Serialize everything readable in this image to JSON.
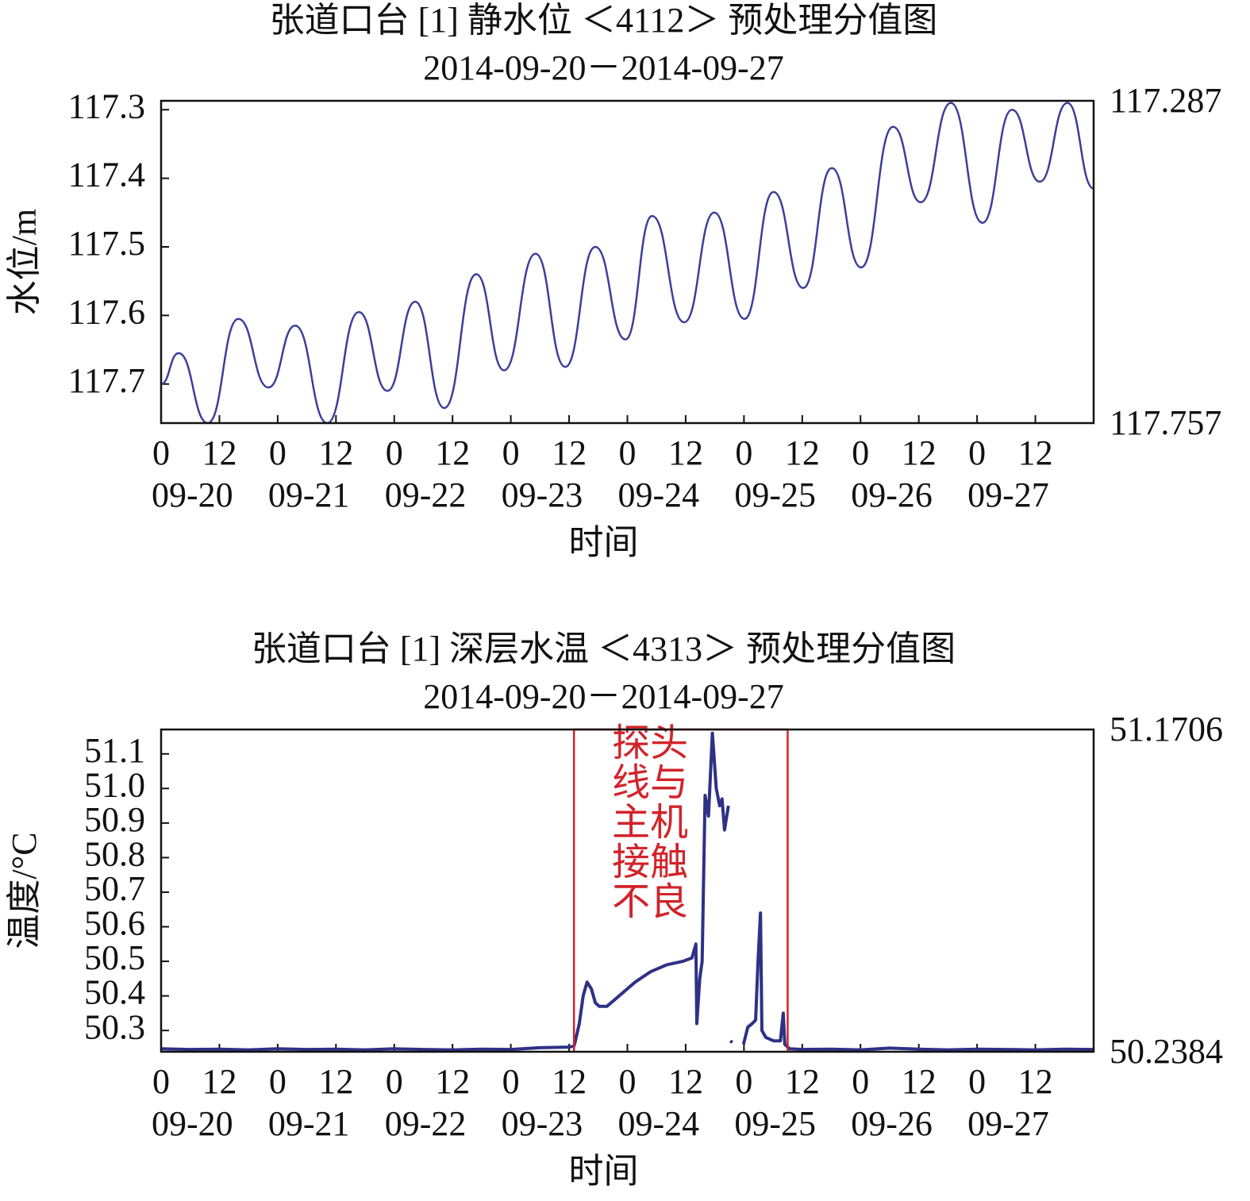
{
  "chart_data": [
    {
      "type": "line",
      "title": "张道口台 [1] 静水位 ＜4112＞ 预处理分值图",
      "subtitle": "2014-09-20－2014-09-27",
      "x_label": "时间",
      "y_label": "水位/m",
      "color": "#3b3f98",
      "xlim": [
        0,
        192
      ],
      "xticks": [
        0,
        12,
        {
          "value": 24,
          "label": "0"
        },
        {
          "value": 36,
          "label": "12"
        },
        {
          "value": 48,
          "label": "0"
        },
        {
          "value": 60,
          "label": "12"
        },
        {
          "value": 72,
          "label": "0"
        },
        {
          "value": 84,
          "label": "12"
        },
        {
          "value": 96,
          "label": "0"
        },
        {
          "value": 108,
          "label": "12"
        },
        {
          "value": 120,
          "label": "0"
        },
        {
          "value": 132,
          "label": "12"
        },
        {
          "value": 144,
          "label": "0"
        },
        {
          "value": 156,
          "label": "12"
        },
        {
          "value": 168,
          "label": "0"
        },
        {
          "value": 180,
          "label": "12"
        }
      ],
      "x_date_ticks": [
        {
          "value": 0,
          "label": "09-20"
        },
        {
          "value": 24,
          "label": "09-21"
        },
        {
          "value": 48,
          "label": "09-22"
        },
        {
          "value": 72,
          "label": "09-23"
        },
        {
          "value": 96,
          "label": "09-24"
        },
        {
          "value": 120,
          "label": "09-25"
        },
        {
          "value": 144,
          "label": "09-26"
        },
        {
          "value": 168,
          "label": "09-27"
        }
      ],
      "ylim": [
        117.757,
        117.287
      ],
      "yticks": [
        117.3,
        117.4,
        117.5,
        117.6,
        117.7
      ],
      "y2lim": [
        117.757,
        117.287
      ],
      "y2ticks": [
        117.287,
        117.757
      ],
      "smooth": true,
      "x": [
        0,
        3.6,
        9.6,
        15.9,
        22.1,
        27.6,
        34.2,
        40.7,
        46.6,
        52.3,
        58.3,
        64.9,
        70.6,
        77.1,
        83.2,
        89.4,
        95.6,
        101.1,
        107.7,
        113.9,
        120.1,
        126.1,
        132.2,
        138.1,
        144.1,
        150.7,
        156.4,
        162.6,
        169.1,
        175.2,
        180.9,
        186.6,
        192
      ],
      "values": [
        117.7,
        117.655,
        117.757,
        117.605,
        117.705,
        117.615,
        117.757,
        117.595,
        117.71,
        117.58,
        117.735,
        117.54,
        117.68,
        117.51,
        117.675,
        117.5,
        117.635,
        117.455,
        117.61,
        117.45,
        117.605,
        117.42,
        117.56,
        117.385,
        117.53,
        117.325,
        117.435,
        117.29,
        117.465,
        117.3,
        117.405,
        117.29,
        117.415
      ]
    },
    {
      "type": "line",
      "title": "张道口台 [1] 深层水温 ＜4313＞ 预处理分值图",
      "subtitle": "2014-09-20－2014-09-27",
      "x_label": "时间",
      "y_label": "温度/°C",
      "color": "#2e3185",
      "xlim": [
        0,
        192
      ],
      "xticks": [
        0,
        12,
        {
          "value": 24,
          "label": "0"
        },
        {
          "value": 36,
          "label": "12"
        },
        {
          "value": 48,
          "label": "0"
        },
        {
          "value": 60,
          "label": "12"
        },
        {
          "value": 72,
          "label": "0"
        },
        {
          "value": 84,
          "label": "12"
        },
        {
          "value": 96,
          "label": "0"
        },
        {
          "value": 108,
          "label": "12"
        },
        {
          "value": 120,
          "label": "0"
        },
        {
          "value": 132,
          "label": "12"
        },
        {
          "value": 144,
          "label": "0"
        },
        {
          "value": 156,
          "label": "12"
        },
        {
          "value": 168,
          "label": "0"
        },
        {
          "value": 180,
          "label": "12"
        }
      ],
      "x_date_ticks": [
        {
          "value": 0,
          "label": "09-20"
        },
        {
          "value": 24,
          "label": "09-21"
        },
        {
          "value": 48,
          "label": "09-22"
        },
        {
          "value": 72,
          "label": "09-23"
        },
        {
          "value": 96,
          "label": "09-24"
        },
        {
          "value": 120,
          "label": "09-25"
        },
        {
          "value": 144,
          "label": "09-26"
        },
        {
          "value": 168,
          "label": "09-27"
        }
      ],
      "ylim": [
        50.2384,
        51.1706
      ],
      "yticks": [
        50.3,
        50.4,
        50.5,
        50.6,
        50.7,
        50.8,
        50.9,
        {
          "value": 51,
          "label": "51.0"
        },
        51.1
      ],
      "y2lim": [
        50.2384,
        51.1706
      ],
      "y2ticks": [
        51.1706,
        50.2384
      ],
      "smooth": false,
      "highlight": {
        "x_range": [
          85,
          129
        ],
        "color": "#d2232a",
        "text_lines": [
          "探头",
          "线与",
          "主机",
          "接触",
          "不良"
        ]
      },
      "x": [
        0,
        6,
        12,
        18,
        24,
        30,
        36,
        42,
        48,
        54,
        60,
        66,
        72,
        78,
        84,
        85,
        85.3,
        86.1,
        86.9,
        87.7,
        88.6,
        89.4,
        90.2,
        91.8,
        94.3,
        97.6,
        100.8,
        104.1,
        107.4,
        109.3,
        110.1,
        110.3,
        110.9,
        111.4,
        112.0,
        112.7,
        113.5,
        114.3,
        115.0,
        115.5,
        116.0,
        116.8,
        null,
        117.2,
        117.6,
        null,
        119.9,
        120.8,
        121.7,
        122.4,
        122.9,
        123.4,
        123.7,
        124.5,
        126.1,
        127.5,
        128.1,
        128.4,
        129.4,
        132,
        138,
        144,
        150,
        156,
        162,
        168,
        174,
        180,
        186,
        192
      ],
      "values": [
        50.247,
        50.245,
        50.246,
        50.244,
        50.247,
        50.245,
        50.246,
        50.244,
        50.247,
        50.245,
        50.244,
        50.246,
        50.245,
        50.25,
        50.252,
        50.255,
        50.27,
        50.32,
        50.4,
        50.44,
        50.42,
        50.38,
        50.37,
        50.37,
        50.4,
        50.44,
        50.47,
        50.49,
        50.5,
        50.51,
        50.55,
        50.32,
        50.45,
        50.5,
        50.98,
        50.92,
        51.16,
        51.0,
        50.95,
        50.97,
        50.88,
        50.95,
        null,
        50.27,
        50.265,
        null,
        50.26,
        50.31,
        50.32,
        50.33,
        50.5,
        50.64,
        50.3,
        50.28,
        50.27,
        50.27,
        50.35,
        50.26,
        50.247,
        50.245,
        50.246,
        50.244,
        50.249,
        50.246,
        50.244,
        50.246,
        50.245,
        50.244,
        50.246,
        50.245
      ]
    }
  ]
}
